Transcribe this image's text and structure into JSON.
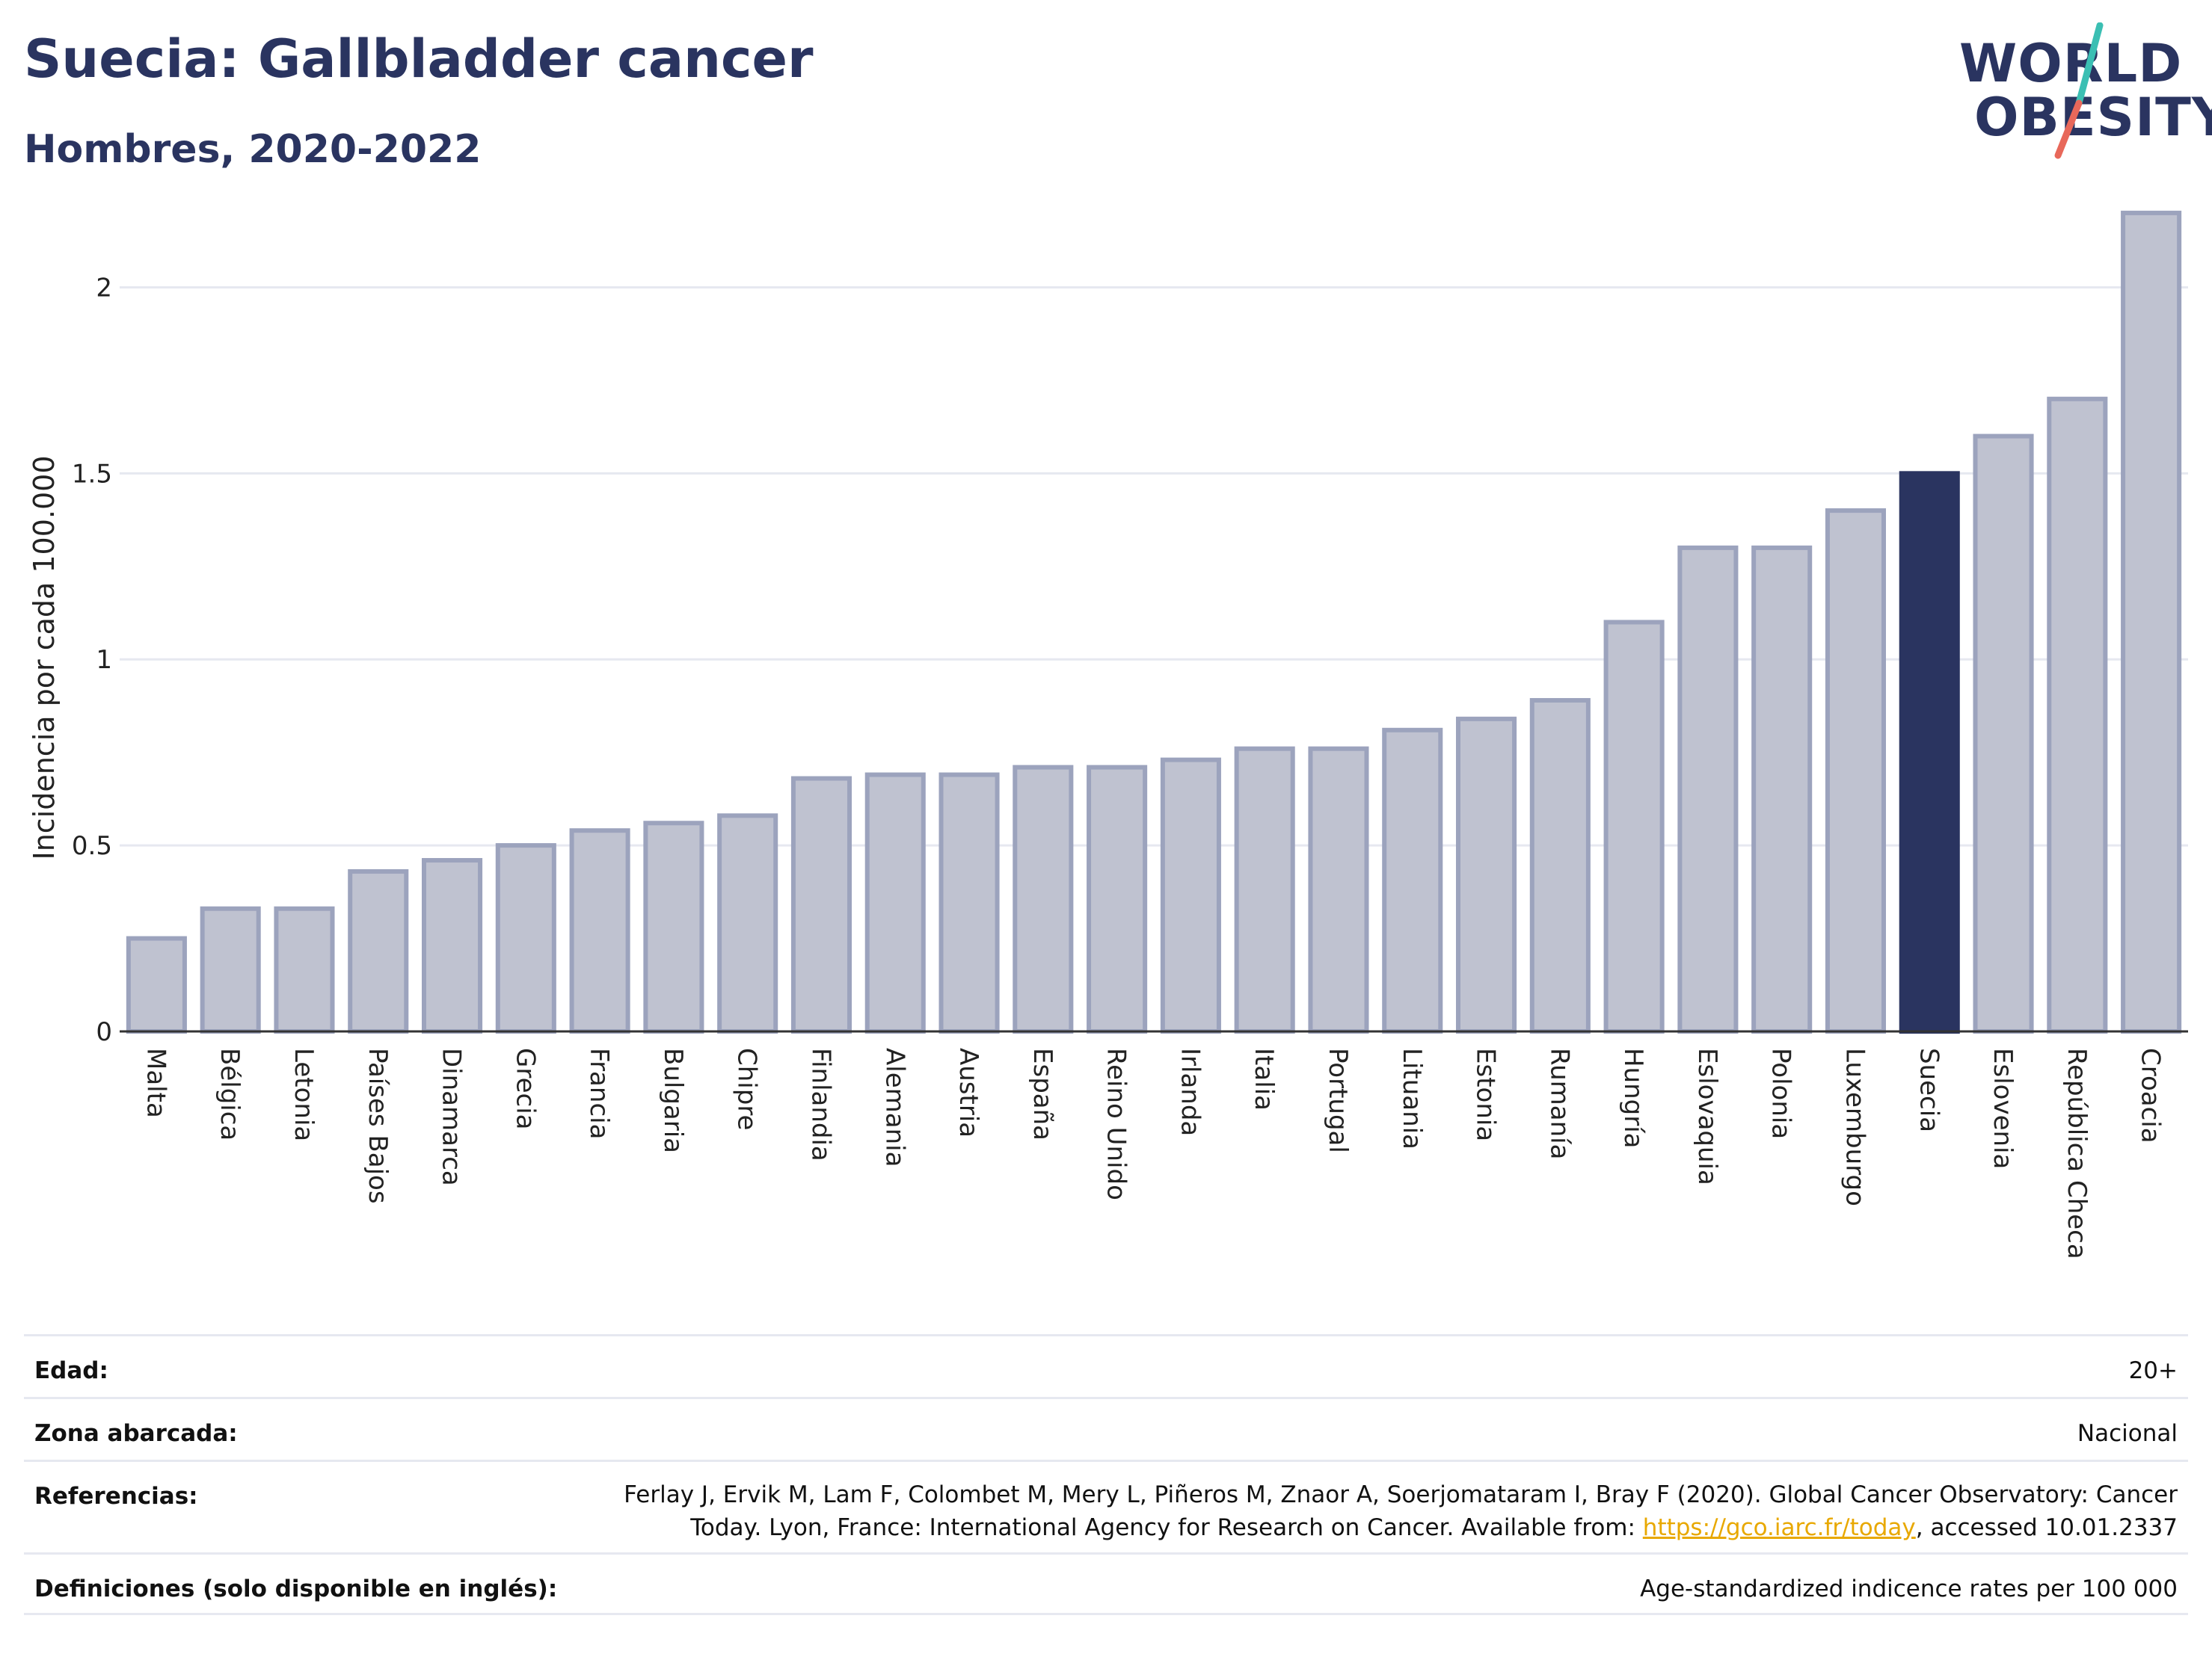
{
  "header": {
    "title": "Suecia: Gallbladder cancer",
    "subtitle": "Hombres, 2020-2022"
  },
  "logo": {
    "line1": "WORLD",
    "line2": "OBESITY",
    "slash_color_top": "#3bbfb3",
    "slash_color_bottom": "#e8685a"
  },
  "colors": {
    "bar_default": "#bfc2d0",
    "bar_border": "#9ca3bd",
    "bar_highlight": "#2a3460",
    "grid": "#e6e8f0",
    "axis": "#333333"
  },
  "chart_data": {
    "type": "bar",
    "ylabel": "Incidencia por cada 100.000",
    "xlabel": "",
    "ylim": [
      0,
      2.25
    ],
    "yticks": [
      0,
      0.5,
      1,
      1.5,
      2
    ],
    "ytick_labels": [
      "0",
      "0.5",
      "1",
      "1.5",
      "2"
    ],
    "grid": true,
    "highlight": "Suecia",
    "categories": [
      "Malta",
      "Bélgica",
      "Letonia",
      "Países Bajos",
      "Dinamarca",
      "Grecia",
      "Francia",
      "Bulgaria",
      "Chipre",
      "Finlandia",
      "Alemania",
      "Austria",
      "España",
      "Reino Unido",
      "Irlanda",
      "Italia",
      "Portugal",
      "Lituania",
      "Estonia",
      "Rumanía",
      "Hungría",
      "Eslovaquia",
      "Polonia",
      "Luxemburgo",
      "Suecia",
      "Eslovenia",
      "República Checa",
      "Croacia"
    ],
    "values": [
      0.25,
      0.33,
      0.33,
      0.43,
      0.46,
      0.5,
      0.54,
      0.56,
      0.58,
      0.68,
      0.69,
      0.69,
      0.71,
      0.71,
      0.73,
      0.76,
      0.76,
      0.81,
      0.84,
      0.89,
      1.1,
      1.3,
      1.3,
      1.4,
      1.5,
      1.6,
      1.7,
      2.2
    ]
  },
  "info": {
    "age_label": "Edad:",
    "age_value": "20+",
    "zone_label": "Zona abarcada:",
    "zone_value": "Nacional",
    "refs_label": "Referencias:",
    "refs_line1": "Ferlay J, Ervik M, Lam F, Colombet M, Mery L, Piñeros M, Znaor A, Soerjomataram I, Bray F (2020). Global Cancer Observatory: Cancer",
    "refs_line2_pre": "Today. Lyon, France: International Agency for Research on Cancer. Available from: ",
    "refs_link": "https://gco.iarc.fr/today",
    "refs_line2_post": ", accessed 10.01.2337",
    "defs_label": "Definiciones (solo disponible en inglés):",
    "defs_value": "Age-standardized indicence rates per 100 000"
  }
}
